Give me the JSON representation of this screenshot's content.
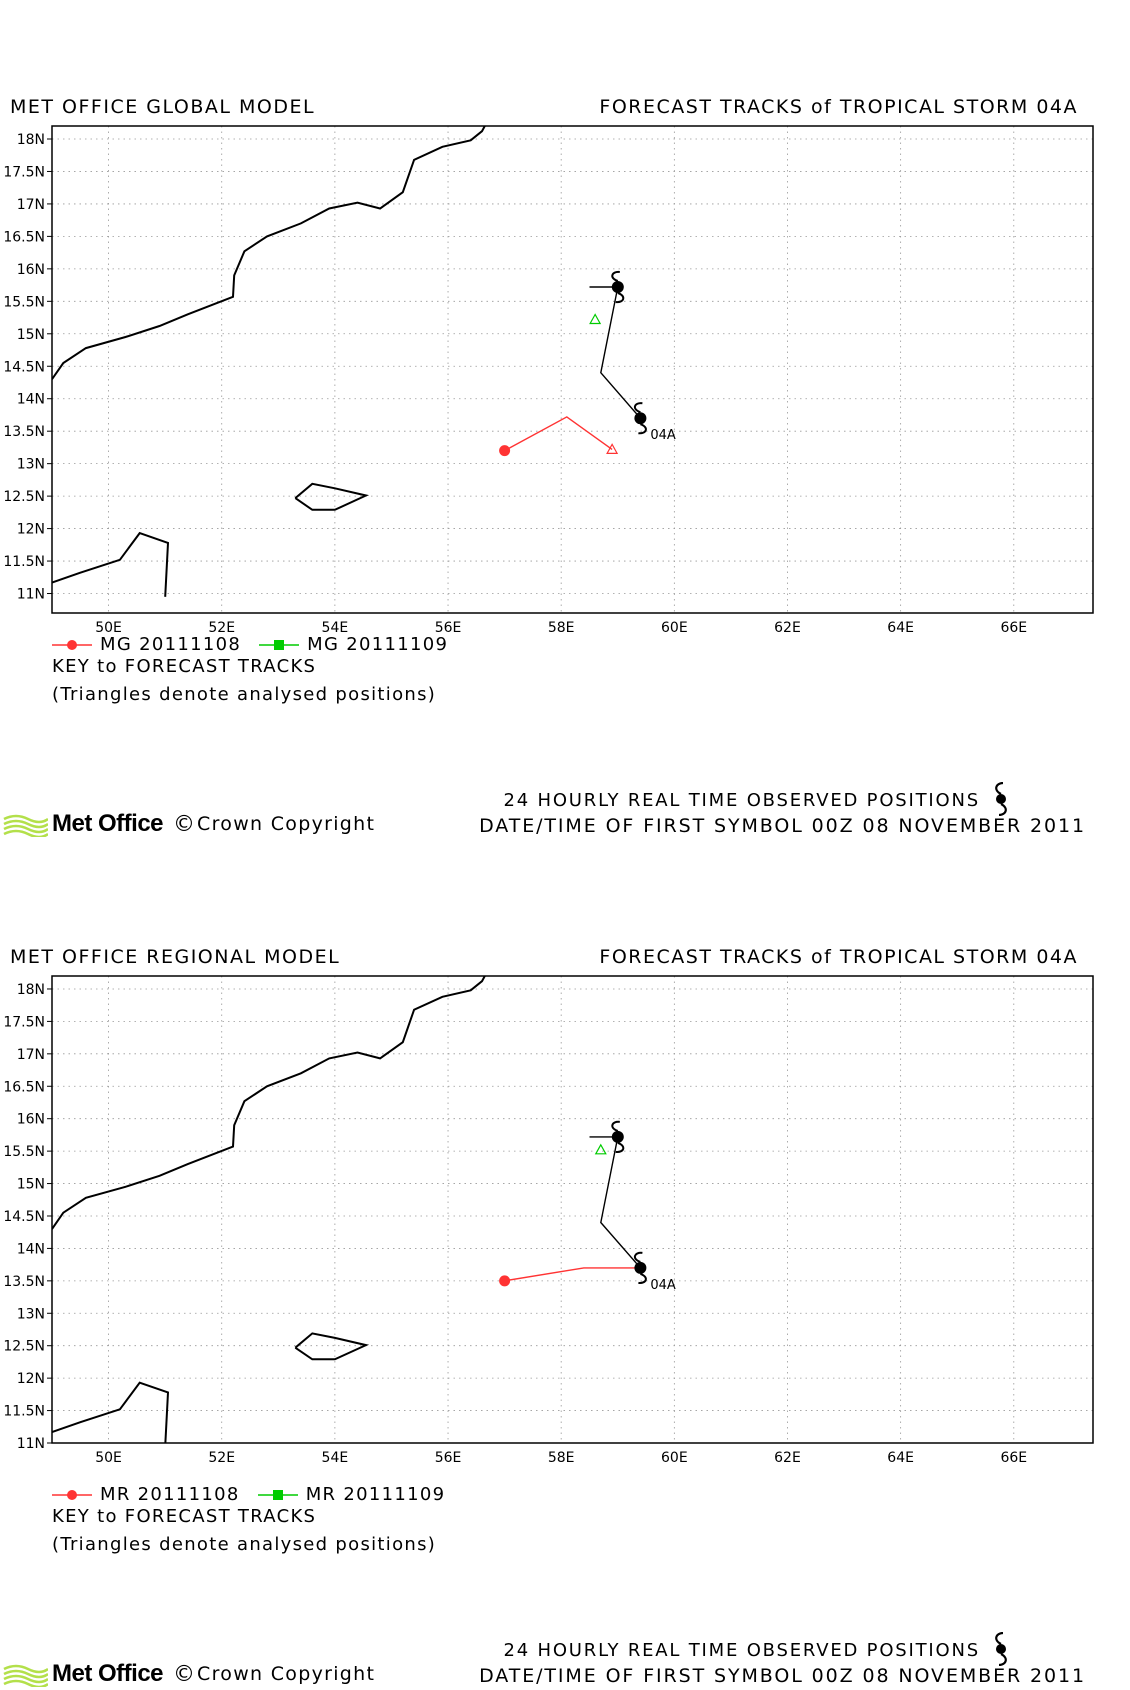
{
  "panels": [
    {
      "id": "global",
      "header_left": "MET OFFICE GLOBAL MODEL",
      "header_right": "FORECAST TRACKS of TROPICAL STORM 04A",
      "legend": [
        {
          "label": "MG 20111108",
          "color": "#ff3333",
          "marker": "circle"
        },
        {
          "label": "MG 20111109",
          "color": "#00cc00",
          "marker": "square"
        }
      ],
      "key_label": "KEY to FORECAST TRACKS",
      "triangle_note": "(Triangles denote analysed positions)",
      "storm_label": "04A",
      "observed_track": [
        [
          58.5,
          15.72
        ],
        [
          59.0,
          15.72
        ],
        [
          58.7,
          14.4
        ],
        [
          59.4,
          13.7
        ]
      ],
      "forecast_tracks": [
        {
          "color": "#ff3333",
          "points": [
            [
              57.0,
              13.2
            ],
            [
              58.1,
              13.72
            ],
            [
              58.9,
              13.22
            ]
          ]
        }
      ],
      "analysed_positions": [
        {
          "color": "#ff3333",
          "lon": 58.9,
          "lat": 13.22
        },
        {
          "color": "#00cc00",
          "lon": 58.6,
          "lat": 15.22
        }
      ],
      "storm_symbols": [
        [
          59.0,
          15.72
        ],
        [
          59.4,
          13.7
        ]
      ]
    },
    {
      "id": "regional",
      "header_left": "MET OFFICE REGIONAL MODEL",
      "header_right": "FORECAST TRACKS of TROPICAL STORM 04A",
      "legend": [
        {
          "label": "MR 20111108",
          "color": "#ff3333",
          "marker": "circle"
        },
        {
          "label": "MR 20111109",
          "color": "#00cc00",
          "marker": "square"
        }
      ],
      "key_label": "KEY to FORECAST TRACKS",
      "triangle_note": "(Triangles denote analysed positions)",
      "storm_label": "04A",
      "observed_track": [
        [
          58.5,
          15.72
        ],
        [
          59.0,
          15.72
        ],
        [
          58.7,
          14.4
        ],
        [
          59.4,
          13.7
        ]
      ],
      "forecast_tracks": [
        {
          "color": "#ff3333",
          "points": [
            [
              57.0,
              13.5
            ],
            [
              58.4,
              13.7
            ],
            [
              59.4,
              13.7
            ]
          ]
        }
      ],
      "analysed_positions": [
        {
          "color": "#00cc00",
          "lon": 58.7,
          "lat": 15.52
        }
      ],
      "storm_symbols": [
        [
          59.0,
          15.72
        ],
        [
          59.4,
          13.7
        ]
      ]
    }
  ],
  "map_extent": {
    "lon_min": 49,
    "lon_max": 67.4,
    "lat_min_global": 10.7,
    "lat_min_regional": 11.0,
    "lat_max": 18.2
  },
  "lon_ticks": [
    "50E",
    "52E",
    "54E",
    "56E",
    "58E",
    "60E",
    "62E",
    "64E",
    "66E"
  ],
  "lat_ticks_global": [
    "11N",
    "11.5N",
    "12N",
    "12.5N",
    "13N",
    "13.5N",
    "14N",
    "14.5N",
    "15N",
    "15.5N",
    "16N",
    "16.5N",
    "17N",
    "17.5N",
    "18N"
  ],
  "lat_ticks_regional": [
    "11N",
    "11.5N",
    "12N",
    "12.5N",
    "13N",
    "13.5N",
    "14N",
    "14.5N",
    "15N",
    "15.5N",
    "16N",
    "16.5N",
    "17N",
    "17.5N",
    "18N"
  ],
  "coastlines": {
    "arabia": [
      [
        49.0,
        14.3
      ],
      [
        49.2,
        14.55
      ],
      [
        49.6,
        14.78
      ],
      [
        50.3,
        14.95
      ],
      [
        50.9,
        15.12
      ],
      [
        51.4,
        15.3
      ],
      [
        52.2,
        15.57
      ],
      [
        52.22,
        15.9
      ],
      [
        52.4,
        16.27
      ],
      [
        52.8,
        16.5
      ],
      [
        53.4,
        16.7
      ],
      [
        53.9,
        16.93
      ],
      [
        54.4,
        17.02
      ],
      [
        54.8,
        16.93
      ],
      [
        55.2,
        17.18
      ],
      [
        55.4,
        17.68
      ],
      [
        55.9,
        17.88
      ],
      [
        56.4,
        17.98
      ],
      [
        56.6,
        18.12
      ],
      [
        56.65,
        18.2
      ]
    ],
    "socotra": [
      [
        53.3,
        12.47
      ],
      [
        53.6,
        12.69
      ],
      [
        54.0,
        12.62
      ],
      [
        54.55,
        12.51
      ],
      [
        54.0,
        12.29
      ],
      [
        53.6,
        12.29
      ],
      [
        53.3,
        12.47
      ]
    ],
    "somalia": [
      [
        49.0,
        11.17
      ],
      [
        49.5,
        11.32
      ],
      [
        50.2,
        11.52
      ],
      [
        50.55,
        11.93
      ],
      [
        51.05,
        11.78
      ],
      [
        51.0,
        10.95
      ]
    ]
  },
  "observed_label": "24 HOURLY REAL TIME OBSERVED POSITIONS",
  "date_line": "DATE/TIME OF FIRST SYMBOL 00Z 08 NOVEMBER 2011",
  "brand": {
    "name": "Met Office",
    "copyright_symbol": "©",
    "copyright_text": "Crown Copyright"
  },
  "icons": {
    "storm": "tropical-cyclone-icon",
    "logo": "met-office-logo-icon"
  },
  "colors": {
    "forecast_0108": "#ff3333",
    "forecast_0109": "#00cc00",
    "coast": "#000000",
    "logo": "#b3e04a"
  }
}
